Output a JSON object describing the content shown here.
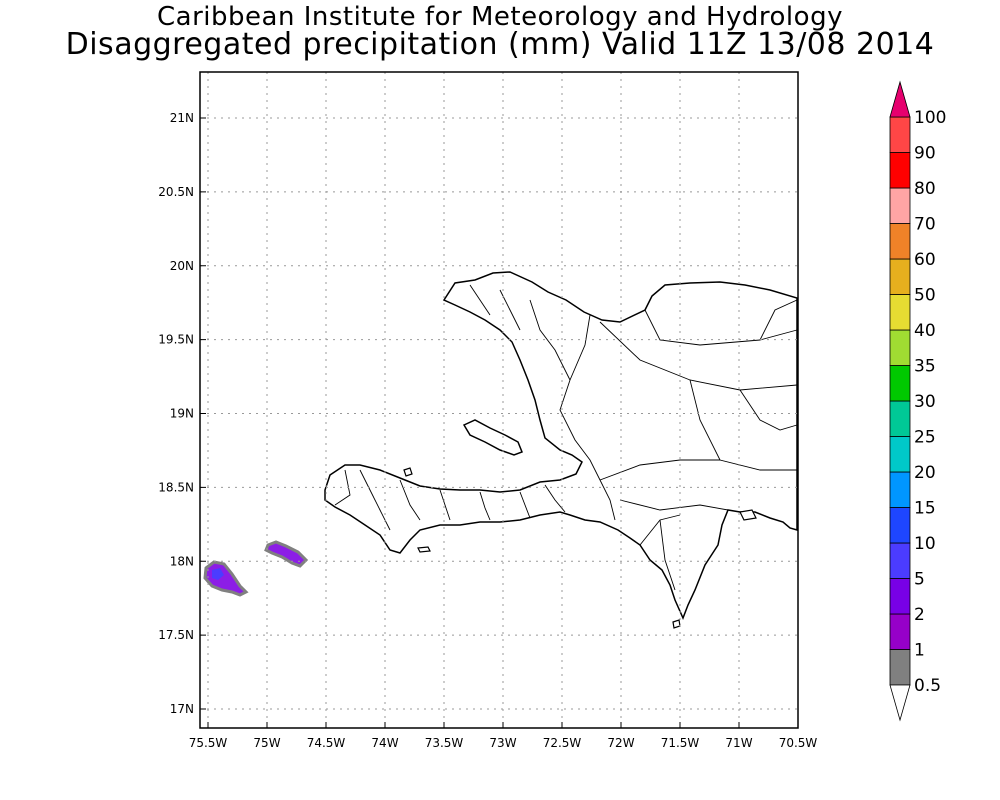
{
  "title": {
    "line1": "Caribbean Institute for Meteorology and Hydrology",
    "line2": "Disaggregated precipitation (mm) Valid 11Z 13/08 2014"
  },
  "map": {
    "lon_range": [
      -75.5,
      -70.5
    ],
    "lat_range": [
      16.9,
      21.3
    ],
    "lon_ticks": [
      {
        "value": -75.5,
        "label": "75.5W"
      },
      {
        "value": -75,
        "label": "75W"
      },
      {
        "value": -74.5,
        "label": "74.5W"
      },
      {
        "value": -74,
        "label": "74W"
      },
      {
        "value": -73.5,
        "label": "73.5W"
      },
      {
        "value": -73,
        "label": "73W"
      },
      {
        "value": -72.5,
        "label": "72.5W"
      },
      {
        "value": -72,
        "label": "72W"
      },
      {
        "value": -71.5,
        "label": "71.5W"
      },
      {
        "value": -71,
        "label": "71W"
      },
      {
        "value": -70.5,
        "label": "70.5W"
      }
    ],
    "lat_ticks": [
      {
        "value": 21,
        "label": "21N"
      },
      {
        "value": 20.5,
        "label": "20.5N"
      },
      {
        "value": 20,
        "label": "20N"
      },
      {
        "value": 19.5,
        "label": "19.5N"
      },
      {
        "value": 19,
        "label": "19N"
      },
      {
        "value": 18.5,
        "label": "18.5N"
      },
      {
        "value": 18,
        "label": "18N"
      },
      {
        "value": 17.5,
        "label": "17.5N"
      },
      {
        "value": 17,
        "label": "17N"
      }
    ],
    "grid": true,
    "land_color": "#ffffff",
    "coast_color": "#000000"
  },
  "precip_cells": [
    {
      "lon": -75.27,
      "lat": 17.92,
      "value": 5,
      "color": "#8c1ee6"
    },
    {
      "lon": -75.32,
      "lat": 17.89,
      "value": 10,
      "color": "#4b3cff"
    },
    {
      "lon": -74.85,
      "lat": 18.07,
      "value": 5,
      "color": "#8c1ee6"
    }
  ],
  "colorbar": {
    "entries": [
      {
        "label": "0.5",
        "color": "#ffffff"
      },
      {
        "label": "1",
        "color": "#808080"
      },
      {
        "label": "2",
        "color": "#9600c8"
      },
      {
        "label": "5",
        "color": "#7800e6"
      },
      {
        "label": "10",
        "color": "#4b3cff"
      },
      {
        "label": "15",
        "color": "#1e46ff"
      },
      {
        "label": "20",
        "color": "#0096ff"
      },
      {
        "label": "25",
        "color": "#00c8c8"
      },
      {
        "label": "30",
        "color": "#00c896"
      },
      {
        "label": "35",
        "color": "#00c800"
      },
      {
        "label": "40",
        "color": "#a0dc32"
      },
      {
        "label": "50",
        "color": "#e6dc32"
      },
      {
        "label": "60",
        "color": "#e6af1e"
      },
      {
        "label": "70",
        "color": "#f08228"
      },
      {
        "label": "80",
        "color": "#ffa5a5"
      },
      {
        "label": "90",
        "color": "#ff0000"
      },
      {
        "label": "100",
        "color": "#ff4646"
      }
    ],
    "top_triangle_color": "#e6006e"
  }
}
